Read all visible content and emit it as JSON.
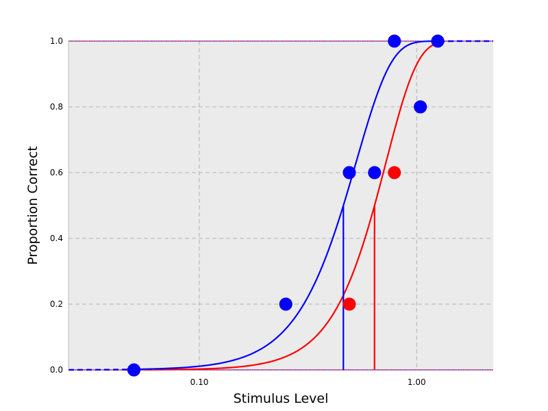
{
  "chart_data": {
    "type": "scatter",
    "title": "",
    "xlabel": "Stimulus Level",
    "ylabel": "Proportion Correct",
    "xscale": "log",
    "xlim": [
      0.025,
      2.25
    ],
    "ylim": [
      0.0,
      1.0
    ],
    "x_ticks": [
      {
        "value": 0.1,
        "label": "0.10"
      },
      {
        "value": 1.0,
        "label": "1.00"
      }
    ],
    "y_ticks": [
      {
        "value": 0.0,
        "label": "0.0"
      },
      {
        "value": 0.2,
        "label": "0.2"
      },
      {
        "value": 0.4,
        "label": "0.4"
      },
      {
        "value": 0.6,
        "label": "0.6"
      },
      {
        "value": 0.8,
        "label": "0.8"
      },
      {
        "value": 1.0,
        "label": "1.0"
      }
    ],
    "grid": true,
    "colors": {
      "background": "#ebebeb",
      "grid": "#b0b0b0",
      "blue": "#0000ff",
      "red": "#ff0000"
    },
    "series": [
      {
        "name": "red",
        "color": "#ff0000",
        "threshold": 0.64,
        "slope": 3.0,
        "threshold_level": 0.5,
        "fit_range": [
          0.05,
          1.27
        ],
        "points": [
          {
            "x": 0.05,
            "y": 0.0
          },
          {
            "x": 0.25,
            "y": 0.2
          },
          {
            "x": 0.49,
            "y": 0.2
          },
          {
            "x": 0.49,
            "y": 0.6
          },
          {
            "x": 0.64,
            "y": 0.6
          },
          {
            "x": 0.79,
            "y": 0.6
          },
          {
            "x": 0.79,
            "y": 1.0
          },
          {
            "x": 1.04,
            "y": 0.8
          },
          {
            "x": 1.25,
            "y": 1.0
          }
        ]
      },
      {
        "name": "blue",
        "color": "#0000ff",
        "threshold": 0.46,
        "slope": 2.7,
        "threshold_level": 0.5,
        "fit_range": [
          0.05,
          1.27
        ],
        "points": [
          {
            "x": 0.05,
            "y": 0.0
          },
          {
            "x": 0.25,
            "y": 0.2
          },
          {
            "x": 0.49,
            "y": 0.6
          },
          {
            "x": 0.64,
            "y": 0.6
          },
          {
            "x": 0.79,
            "y": 1.0
          },
          {
            "x": 1.04,
            "y": 0.8
          },
          {
            "x": 1.25,
            "y": 1.0
          }
        ]
      }
    ]
  }
}
